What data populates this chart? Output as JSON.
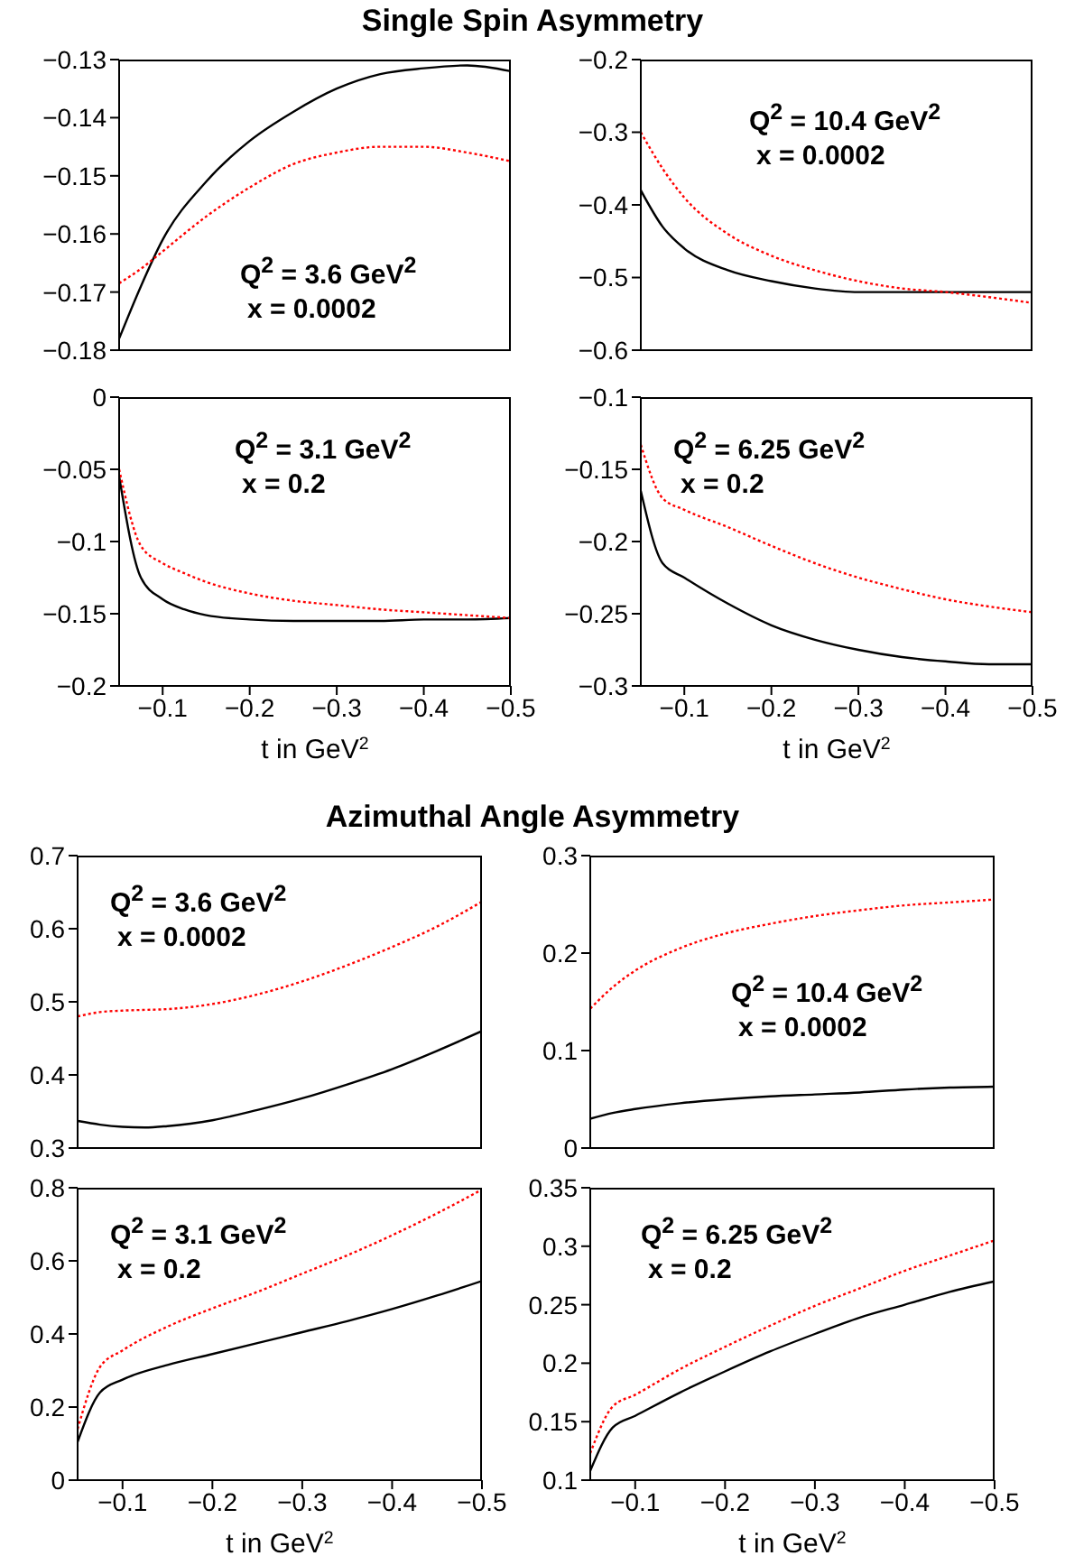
{
  "chart_data": [
    {
      "type": "line",
      "title": "Single Spin Asymmetry",
      "annotations": [
        "Q$^{2}$ = 3.6 GeV$^{2}$",
        "x = 0.0002"
      ],
      "x": [
        -0.05,
        -0.075,
        -0.1,
        -0.15,
        -0.2,
        -0.25,
        -0.3,
        -0.35,
        -0.4,
        -0.45,
        -0.5
      ],
      "series": [
        {
          "color": "#000000",
          "line_style": "solid",
          "values": [
            -0.178,
            -0.169,
            -0.161,
            -0.151,
            -0.144,
            -0.139,
            -0.135,
            -0.1325,
            -0.1315,
            -0.131,
            -0.132
          ]
        },
        {
          "color": "#ff0000",
          "line_style": "dotted",
          "values": [
            -0.1685,
            -0.166,
            -0.163,
            -0.157,
            -0.152,
            -0.148,
            -0.146,
            -0.145,
            -0.145,
            -0.146,
            -0.1475
          ]
        }
      ],
      "xlim": [
        -0.05,
        -0.5
      ],
      "xticks": [
        -0.1,
        -0.2,
        -0.3,
        -0.4,
        -0.5
      ],
      "ylim": [
        -0.18,
        -0.13
      ],
      "yticks": [
        -0.18,
        -0.17,
        -0.16,
        -0.15,
        -0.14,
        -0.13
      ],
      "tick_labels": "y",
      "grid": false,
      "legend": false
    },
    {
      "type": "line",
      "annotations": [
        "Q$^{2}$ = 10.4 GeV$^{2}$",
        "x = 0.0002"
      ],
      "x": [
        -0.05,
        -0.075,
        -0.1,
        -0.15,
        -0.2,
        -0.25,
        -0.3,
        -0.35,
        -0.4,
        -0.45,
        -0.5
      ],
      "series": [
        {
          "color": "#000000",
          "line_style": "solid",
          "values": [
            -0.38,
            -0.43,
            -0.46,
            -0.49,
            -0.505,
            -0.515,
            -0.52,
            -0.52,
            -0.52,
            -0.52,
            -0.52
          ]
        },
        {
          "color": "#ff0000",
          "line_style": "dotted",
          "values": [
            -0.3,
            -0.35,
            -0.39,
            -0.44,
            -0.47,
            -0.49,
            -0.505,
            -0.515,
            -0.52,
            -0.527,
            -0.535
          ]
        }
      ],
      "xlim": [
        -0.05,
        -0.5
      ],
      "xticks": [
        -0.1,
        -0.2,
        -0.3,
        -0.4,
        -0.5
      ],
      "ylim": [
        -0.6,
        -0.2
      ],
      "yticks": [
        -0.6,
        -0.5,
        -0.4,
        -0.3,
        -0.2
      ],
      "tick_labels": "y",
      "grid": false,
      "legend": false
    },
    {
      "type": "line",
      "xlabel": "t in GeV$^{2}$",
      "annotations": [
        "Q$^{2}$ = 3.1 GeV$^{2}$",
        "x = 0.2"
      ],
      "x": [
        -0.05,
        -0.075,
        -0.1,
        -0.125,
        -0.15,
        -0.2,
        -0.25,
        -0.3,
        -0.35,
        -0.4,
        -0.45,
        -0.5
      ],
      "series": [
        {
          "color": "#000000",
          "line_style": "solid",
          "values": [
            -0.055,
            -0.125,
            -0.14,
            -0.147,
            -0.151,
            -0.154,
            -0.155,
            -0.155,
            -0.155,
            -0.154,
            -0.154,
            -0.153
          ]
        },
        {
          "color": "#ff0000",
          "line_style": "dotted",
          "values": [
            -0.05,
            -0.103,
            -0.115,
            -0.122,
            -0.128,
            -0.136,
            -0.141,
            -0.144,
            -0.147,
            -0.149,
            -0.151,
            -0.153
          ]
        }
      ],
      "xlim": [
        -0.05,
        -0.5
      ],
      "xticks": [
        -0.1,
        -0.2,
        -0.3,
        -0.4,
        -0.5
      ],
      "ylim": [
        -0.2,
        0
      ],
      "yticks": [
        -0.2,
        -0.15,
        -0.1,
        -0.05,
        0
      ],
      "grid": false,
      "legend": false
    },
    {
      "type": "line",
      "xlabel": "t in GeV$^{2}$",
      "annotations": [
        "Q$^{2}$ = 6.25 GeV$^{2}$",
        "x = 0.2"
      ],
      "x": [
        -0.05,
        -0.075,
        -0.1,
        -0.15,
        -0.2,
        -0.25,
        -0.3,
        -0.35,
        -0.4,
        -0.45,
        -0.5
      ],
      "series": [
        {
          "color": "#000000",
          "line_style": "solid",
          "values": [
            -0.165,
            -0.215,
            -0.225,
            -0.243,
            -0.258,
            -0.268,
            -0.275,
            -0.28,
            -0.283,
            -0.285,
            -0.285
          ]
        },
        {
          "color": "#ff0000",
          "line_style": "dotted",
          "values": [
            -0.133,
            -0.17,
            -0.178,
            -0.19,
            -0.203,
            -0.215,
            -0.225,
            -0.233,
            -0.24,
            -0.245,
            -0.249
          ]
        }
      ],
      "xlim": [
        -0.05,
        -0.5
      ],
      "xticks": [
        -0.1,
        -0.2,
        -0.3,
        -0.4,
        -0.5
      ],
      "ylim": [
        -0.3,
        -0.1
      ],
      "yticks": [
        -0.3,
        -0.25,
        -0.2,
        -0.15,
        -0.1
      ],
      "grid": false,
      "legend": false
    },
    {
      "type": "line",
      "title": "Azimuthal Angle Asymmetry",
      "annotations": [
        "Q$^{2}$ = 3.6 GeV$^{2}$",
        "x = 0.0002"
      ],
      "x": [
        -0.05,
        -0.075,
        -0.1,
        -0.125,
        -0.15,
        -0.2,
        -0.25,
        -0.3,
        -0.35,
        -0.4,
        -0.45,
        -0.5
      ],
      "series": [
        {
          "color": "#000000",
          "line_style": "solid",
          "values": [
            0.337,
            0.332,
            0.329,
            0.328,
            0.33,
            0.338,
            0.352,
            0.368,
            0.387,
            0.408,
            0.433,
            0.46
          ]
        },
        {
          "color": "#ff0000",
          "line_style": "dotted",
          "values": [
            0.48,
            0.486,
            0.488,
            0.489,
            0.49,
            0.497,
            0.51,
            0.528,
            0.55,
            0.575,
            0.603,
            0.637
          ]
        }
      ],
      "xlim": [
        -0.05,
        -0.5
      ],
      "xticks": [
        -0.1,
        -0.2,
        -0.3,
        -0.4,
        -0.5
      ],
      "ylim": [
        0.3,
        0.7
      ],
      "yticks": [
        0.3,
        0.4,
        0.5,
        0.6,
        0.7
      ],
      "tick_labels": "y",
      "grid": false,
      "legend": false
    },
    {
      "type": "line",
      "annotations": [
        "Q$^{2}$ = 10.4 GeV$^{2}$",
        "x = 0.0002"
      ],
      "x": [
        -0.05,
        -0.075,
        -0.1,
        -0.15,
        -0.2,
        -0.25,
        -0.3,
        -0.35,
        -0.4,
        -0.45,
        -0.5
      ],
      "series": [
        {
          "color": "#000000",
          "line_style": "solid",
          "values": [
            0.03,
            0.036,
            0.04,
            0.046,
            0.05,
            0.053,
            0.055,
            0.057,
            0.06,
            0.062,
            0.063
          ]
        },
        {
          "color": "#ff0000",
          "line_style": "dotted",
          "values": [
            0.143,
            0.165,
            0.182,
            0.205,
            0.22,
            0.23,
            0.238,
            0.244,
            0.249,
            0.252,
            0.255
          ]
        }
      ],
      "xlim": [
        -0.05,
        -0.5
      ],
      "xticks": [
        -0.1,
        -0.2,
        -0.3,
        -0.4,
        -0.5
      ],
      "ylim": [
        0,
        0.3
      ],
      "yticks": [
        0,
        0.1,
        0.2,
        0.3
      ],
      "tick_labels": "y",
      "grid": false,
      "legend": false
    },
    {
      "type": "line",
      "xlabel": "t in GeV$^{2}$",
      "annotations": [
        "Q$^{2}$ = 3.1 GeV$^{2}$",
        "x = 0.2"
      ],
      "x": [
        -0.05,
        -0.075,
        -0.1,
        -0.15,
        -0.2,
        -0.25,
        -0.3,
        -0.35,
        -0.4,
        -0.45,
        -0.5
      ],
      "series": [
        {
          "color": "#000000",
          "line_style": "solid",
          "values": [
            0.105,
            0.24,
            0.275,
            0.315,
            0.345,
            0.375,
            0.405,
            0.435,
            0.468,
            0.505,
            0.545
          ]
        },
        {
          "color": "#ff0000",
          "line_style": "dotted",
          "values": [
            0.14,
            0.31,
            0.355,
            0.42,
            0.47,
            0.515,
            0.565,
            0.615,
            0.67,
            0.73,
            0.795
          ]
        }
      ],
      "xlim": [
        -0.05,
        -0.5
      ],
      "xticks": [
        -0.1,
        -0.2,
        -0.3,
        -0.4,
        -0.5
      ],
      "ylim": [
        0,
        0.8
      ],
      "yticks": [
        0,
        0.2,
        0.4,
        0.6,
        0.8
      ],
      "grid": false,
      "legend": false
    },
    {
      "type": "line",
      "xlabel": "t in GeV$^{2}$",
      "annotations": [
        "Q$^{2}$ = 6.25 GeV$^{2}$",
        "x = 0.2"
      ],
      "x": [
        -0.05,
        -0.075,
        -0.1,
        -0.15,
        -0.2,
        -0.25,
        -0.3,
        -0.35,
        -0.4,
        -0.45,
        -0.5
      ],
      "series": [
        {
          "color": "#000000",
          "line_style": "solid",
          "values": [
            0.108,
            0.145,
            0.155,
            0.175,
            0.193,
            0.21,
            0.225,
            0.239,
            0.25,
            0.261,
            0.27
          ]
        },
        {
          "color": "#ff0000",
          "line_style": "dotted",
          "values": [
            0.123,
            0.163,
            0.173,
            0.195,
            0.214,
            0.232,
            0.249,
            0.264,
            0.279,
            0.292,
            0.305
          ]
        }
      ],
      "xlim": [
        -0.05,
        -0.5
      ],
      "xticks": [
        -0.1,
        -0.2,
        -0.3,
        -0.4,
        -0.5
      ],
      "ylim": [
        0.1,
        0.35
      ],
      "yticks": [
        0.1,
        0.15,
        0.2,
        0.25,
        0.3,
        0.35
      ],
      "grid": false,
      "legend": false
    }
  ]
}
